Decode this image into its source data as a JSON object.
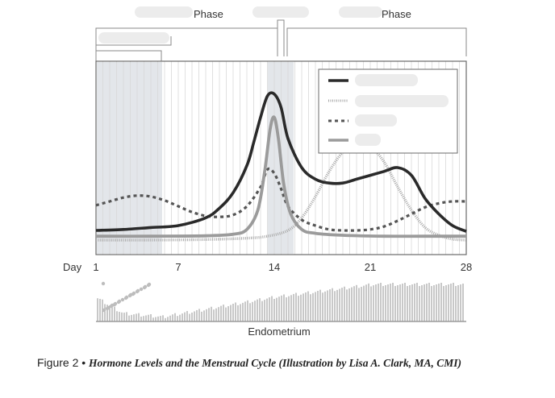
{
  "chart_data": {
    "type": "line",
    "phase_labels": [
      "Phase",
      "Phase"
    ],
    "x_prefix": "Day",
    "x_ticks": [
      1,
      7,
      14,
      21,
      28
    ],
    "xlim": [
      1,
      28
    ],
    "ylim": [
      0,
      10
    ],
    "grid": true,
    "legend_position": "top-right",
    "bottom_label": "Endometrium",
    "series": [
      {
        "style": "solid-dark",
        "color": "#2a2a2a",
        "x": [
          1,
          3,
          5,
          7,
          9,
          10,
          11,
          12,
          12.5,
          13,
          13.5,
          14,
          14.5,
          15,
          16,
          17,
          18,
          19,
          20,
          21,
          22,
          23,
          24,
          25,
          26,
          27,
          28
        ],
        "y": [
          1.25,
          1.3,
          1.4,
          1.5,
          1.9,
          2.4,
          3.2,
          4.6,
          5.8,
          7.1,
          8.2,
          8.3,
          7.6,
          6.0,
          4.5,
          3.9,
          3.7,
          3.7,
          3.9,
          4.1,
          4.3,
          4.5,
          4.1,
          2.9,
          2.1,
          1.5,
          1.2
        ]
      },
      {
        "style": "dense-dotted",
        "color": "#a9a9a9",
        "x": [
          1,
          5,
          9,
          12,
          13.5,
          15,
          16,
          17,
          18,
          19,
          20,
          21,
          22,
          23,
          24,
          25,
          26,
          27,
          28
        ],
        "y": [
          0.75,
          0.75,
          0.78,
          0.85,
          0.95,
          1.25,
          1.9,
          3.0,
          4.3,
          5.3,
          5.8,
          5.6,
          4.8,
          3.5,
          2.3,
          1.4,
          1.0,
          0.8,
          0.75
        ]
      },
      {
        "style": "dashed",
        "color": "#555555",
        "x": [
          1,
          2,
          3,
          4,
          5,
          6,
          7,
          8,
          9,
          10,
          11,
          12,
          13,
          13.5,
          14,
          14.5,
          15,
          16,
          17,
          18,
          19,
          20,
          21,
          22,
          23,
          24,
          25,
          26,
          27,
          28
        ],
        "y": [
          2.55,
          2.75,
          2.95,
          3.05,
          3.0,
          2.8,
          2.5,
          2.2,
          2.0,
          1.95,
          2.05,
          2.5,
          3.5,
          4.4,
          4.2,
          3.4,
          2.5,
          1.8,
          1.5,
          1.3,
          1.25,
          1.25,
          1.3,
          1.45,
          1.75,
          2.1,
          2.45,
          2.65,
          2.75,
          2.75
        ]
      },
      {
        "style": "solid-light",
        "color": "#9b9b9b",
        "x": [
          1,
          5,
          9,
          11,
          12,
          12.8,
          13.3,
          13.7,
          14,
          14.3,
          14.7,
          15.2,
          16,
          17,
          19,
          22,
          25,
          28
        ],
        "y": [
          0.95,
          0.95,
          0.97,
          1.05,
          1.3,
          2.3,
          4.3,
          6.5,
          7.1,
          6.0,
          3.6,
          2.1,
          1.3,
          1.1,
          1.0,
          0.95,
          0.95,
          0.95
        ]
      }
    ]
  },
  "caption": {
    "figure_number": "Figure 2 •",
    "title": "Hormone Levels and the Menstrual Cycle (Illustration by Lisa A. Clark, MA, CMI)"
  }
}
